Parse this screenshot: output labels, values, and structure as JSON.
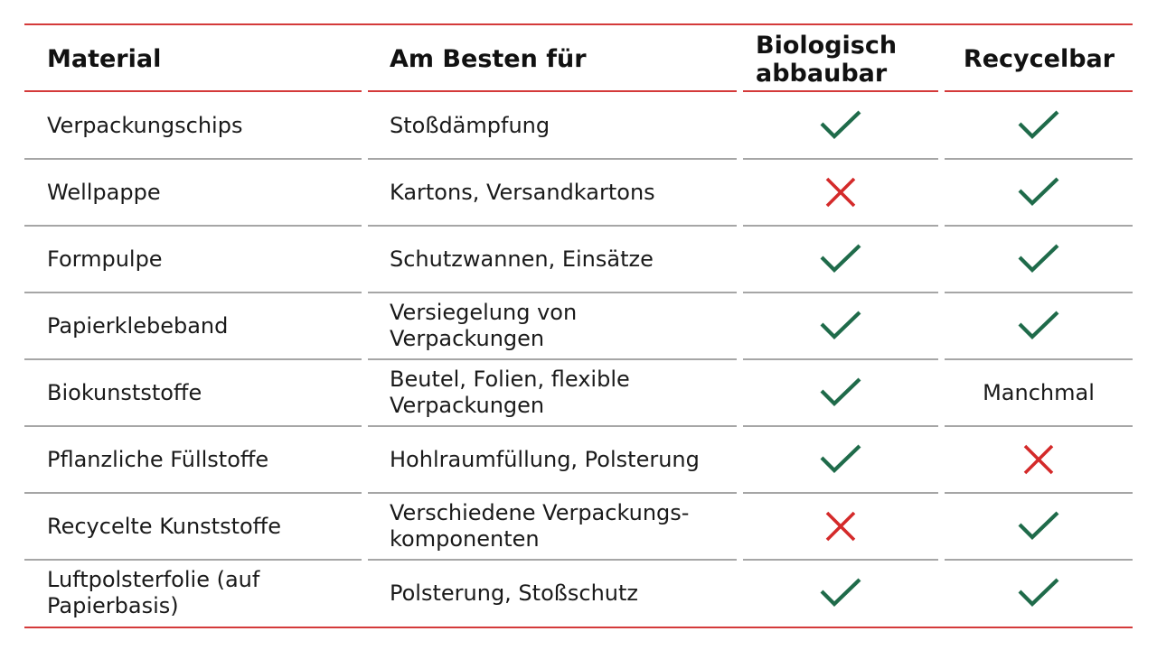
{
  "table": {
    "headers": {
      "material": "Material",
      "best_for": "Am Besten für",
      "biodegradable_line1": "Biologisch",
      "biodegradable_line2": "abbaubar",
      "recyclable": "Recycelbar"
    },
    "rows": [
      {
        "material": [
          "Verpackungschips"
        ],
        "best_for": [
          "Stoßdämpfung"
        ],
        "biodegradable": "yes",
        "recyclable": "yes"
      },
      {
        "material": [
          "Wellpappe"
        ],
        "best_for": [
          "Kartons, Versandkartons"
        ],
        "biodegradable": "no",
        "recyclable": "yes"
      },
      {
        "material": [
          "Formpulpe"
        ],
        "best_for": [
          "Schutzwannen, Einsätze"
        ],
        "biodegradable": "yes",
        "recyclable": "yes"
      },
      {
        "material": [
          "Papierklebeband"
        ],
        "best_for": [
          "Versiegelung von",
          "Verpackungen"
        ],
        "biodegradable": "yes",
        "recyclable": "yes"
      },
      {
        "material": [
          "Biokunststoffe"
        ],
        "best_for": [
          "Beutel, Folien, flexible",
          "Verpackungen"
        ],
        "biodegradable": "yes",
        "recyclable": "Manchmal"
      },
      {
        "material": [
          "Pflanzliche Füllstoffe"
        ],
        "best_for": [
          "Hohlraumfüllung, Polsterung"
        ],
        "biodegradable": "yes",
        "recyclable": "no"
      },
      {
        "material": [
          "Recycelte Kunststoffe"
        ],
        "best_for": [
          "Verschiedene Verpackungs-",
          "komponenten"
        ],
        "biodegradable": "no",
        "recyclable": "yes"
      },
      {
        "material": [
          "Luftpolsterfolie (auf",
          "Papierbasis)"
        ],
        "best_for": [
          "Polsterung, Stoßschutz"
        ],
        "biodegradable": "yes",
        "recyclable": "yes"
      }
    ]
  },
  "colors": {
    "accent_red": "#d43a3a",
    "check_green": "#1f6b4a",
    "cross_red": "#d42a2a",
    "divider_gray": "#a6a6a6"
  },
  "icons": {
    "yes": "check-icon",
    "no": "cross-icon"
  }
}
